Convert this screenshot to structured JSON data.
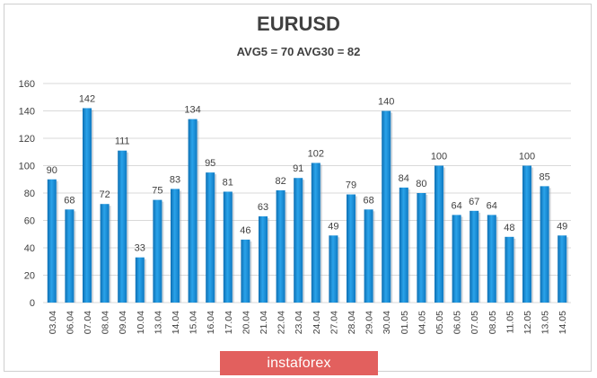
{
  "chart_data": {
    "type": "bar",
    "title": "EURUSD",
    "subtitle": "AVG5 = 70 AVG30 = 82",
    "categories": [
      "03.04",
      "06.04",
      "07.04",
      "08.04",
      "09.04",
      "10.04",
      "13.04",
      "14.04",
      "15.04",
      "16.04",
      "17.04",
      "20.04",
      "21.04",
      "22.04",
      "23.04",
      "24.04",
      "27.04",
      "28.04",
      "29.04",
      "30.04",
      "01.05",
      "04.05",
      "05.05",
      "06.05",
      "07.05",
      "08.05",
      "11.05",
      "12.05",
      "13.05",
      "14.05"
    ],
    "values": [
      90,
      68,
      142,
      72,
      111,
      33,
      75,
      83,
      134,
      95,
      81,
      46,
      63,
      82,
      91,
      102,
      49,
      79,
      68,
      140,
      84,
      80,
      100,
      64,
      67,
      64,
      48,
      100,
      85,
      49
    ],
    "ylim": [
      0,
      160
    ],
    "yticks": [
      0,
      20,
      40,
      60,
      80,
      100,
      120,
      140,
      160
    ],
    "xlabel": "",
    "ylabel": "",
    "grid": true,
    "bar_color": "#1a8fd8"
  },
  "watermark": {
    "text": "instaforex",
    "color": "#e2605e"
  }
}
